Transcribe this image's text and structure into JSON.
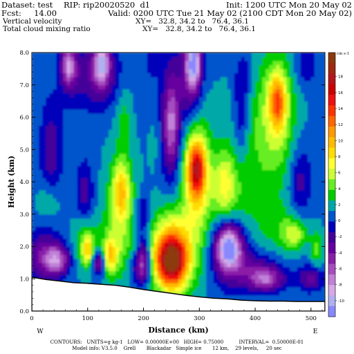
{
  "header": {
    "dataset": "Dataset: test",
    "rip": "RIP: rip20020520  d1",
    "init": "Init: 1200 UTC Mon 20 May 02",
    "fcst": "Fcst:     14.00",
    "valid": "Valid: 0200 UTC Tue 21 May 02 (2100 CDT Mon 20 May 02)",
    "field1": "Vertical velocity",
    "xy1": "XY=   32.8, 34.2 to   76.4, 36.1",
    "field2": "Total cloud mixing ratio",
    "xy2": "XY=   32.8, 34.2 to   76.4, 36.1"
  },
  "footer": {
    "contours": "CONTOURS:   UNITS=g kg-1   LOW= 0.00000E+00   HIGH= 0.75000          INTERVAL=  0.50000E-01",
    "model": "Model info: V3.5.0    Grell       Blackadar   Simple ice       12 km,    29 levels,     20 sec"
  },
  "chart_data": {
    "type": "heatmap",
    "title": "",
    "xlabel": "Distance (km)",
    "ylabel": "Height (km)",
    "xlim": [
      0,
      525
    ],
    "ylim": [
      0,
      8
    ],
    "x_ticks": [
      "0",
      "100",
      "200",
      "300",
      "400",
      "500"
    ],
    "y_ticks": [
      "0.0",
      "1.0",
      "2.0",
      "3.0",
      "4.0",
      "5.0",
      "6.0",
      "7.0",
      "8.0"
    ],
    "end_labels": {
      "left": "W",
      "right": "E"
    },
    "colorbar": {
      "unit_label": "cm s-1",
      "labels": [
        "18",
        "16",
        "14",
        "12",
        "10",
        "8",
        "6",
        "4",
        "2",
        "0",
        "-2",
        "-4",
        "-6",
        "-8",
        "-10"
      ],
      "colors": [
        "#8b3a0a",
        "#a0280f",
        "#b5141a",
        "#cc0000",
        "#ee1010",
        "#ff3300",
        "#ff6600",
        "#ff9900",
        "#ffbb00",
        "#ffdd00",
        "#ffff33",
        "#ccff33",
        "#66ee22",
        "#00cc00",
        "#00a8a8",
        "#0055cc",
        "#0000bb",
        "#44009a",
        "#66009e",
        "#8a1fa8",
        "#a64dc0",
        "#c080d8",
        "#d6a8e6",
        "#b0b0f0",
        "#8888ff"
      ]
    },
    "terrain_km": [
      [
        0,
        1.05
      ],
      [
        25,
        0.98
      ],
      [
        50,
        0.93
      ],
      [
        75,
        0.88
      ],
      [
        100,
        0.86
      ],
      [
        125,
        0.83
      ],
      [
        150,
        0.8
      ],
      [
        175,
        0.74
      ],
      [
        200,
        0.67
      ],
      [
        225,
        0.61
      ],
      [
        250,
        0.55
      ],
      [
        275,
        0.49
      ],
      [
        300,
        0.44
      ],
      [
        325,
        0.4
      ],
      [
        350,
        0.38
      ],
      [
        375,
        0.34
      ],
      [
        400,
        0.32
      ],
      [
        425,
        0.31
      ],
      [
        450,
        0.31
      ],
      [
        475,
        0.3
      ],
      [
        500,
        0.3
      ],
      [
        525,
        0.3
      ]
    ],
    "features": [
      {
        "x": 250,
        "y": 1.55,
        "rx": 26,
        "ry": 0.75,
        "v": 14
      },
      {
        "x": 250,
        "y": 1.9,
        "rx": 38,
        "ry": 1.3,
        "v": 8
      },
      {
        "x": 140,
        "y": 1.7,
        "rx": 12,
        "ry": 0.5,
        "v": 6
      },
      {
        "x": 150,
        "y": 2.0,
        "rx": 30,
        "ry": 1.1,
        "v": 3
      },
      {
        "x": 100,
        "y": 1.9,
        "rx": 10,
        "ry": 0.45,
        "v": 6
      },
      {
        "x": 95,
        "y": 2.2,
        "rx": 22,
        "ry": 0.9,
        "v": 3
      },
      {
        "x": 295,
        "y": 4.4,
        "rx": 15,
        "ry": 0.75,
        "v": 10
      },
      {
        "x": 295,
        "y": 4.3,
        "rx": 24,
        "ry": 1.6,
        "v": 5
      },
      {
        "x": 295,
        "y": 3.7,
        "rx": 30,
        "ry": 2.8,
        "v": 2
      },
      {
        "x": 160,
        "y": 3.7,
        "rx": 14,
        "ry": 0.8,
        "v": 6
      },
      {
        "x": 160,
        "y": 3.6,
        "rx": 30,
        "ry": 1.7,
        "v": 3
      },
      {
        "x": 165,
        "y": 6.0,
        "rx": 14,
        "ry": 1.0,
        "v": 2
      },
      {
        "x": 345,
        "y": 4.0,
        "rx": 18,
        "ry": 1.0,
        "v": 4
      },
      {
        "x": 355,
        "y": 3.5,
        "rx": 50,
        "ry": 1.2,
        "v": 2
      },
      {
        "x": 440,
        "y": 6.5,
        "rx": 14,
        "ry": 0.8,
        "v": 8
      },
      {
        "x": 440,
        "y": 6.2,
        "rx": 34,
        "ry": 1.9,
        "v": 4
      },
      {
        "x": 400,
        "y": 5.2,
        "rx": 60,
        "ry": 2.5,
        "v": 2
      },
      {
        "x": 470,
        "y": 2.4,
        "rx": 20,
        "ry": 0.45,
        "v": 4
      },
      {
        "x": 450,
        "y": 2.5,
        "rx": 45,
        "ry": 0.9,
        "v": 2
      },
      {
        "x": 30,
        "y": 3.4,
        "rx": 22,
        "ry": 0.6,
        "v": 2
      },
      {
        "x": 220,
        "y": 5.2,
        "rx": 12,
        "ry": 1.0,
        "v": 1
      },
      {
        "x": 510,
        "y": 1.9,
        "rx": 12,
        "ry": 0.6,
        "v": 3
      },
      {
        "x": 45,
        "y": 1.6,
        "rx": 22,
        "ry": 0.45,
        "v": -7
      },
      {
        "x": 20,
        "y": 1.7,
        "rx": 30,
        "ry": 0.8,
        "v": -4
      },
      {
        "x": 120,
        "y": 1.5,
        "rx": 12,
        "ry": 0.4,
        "v": -6
      },
      {
        "x": 200,
        "y": 1.7,
        "rx": 12,
        "ry": 0.6,
        "v": -5
      },
      {
        "x": 195,
        "y": 1.3,
        "rx": 18,
        "ry": 0.5,
        "v": -4
      },
      {
        "x": 352,
        "y": 2.0,
        "rx": 20,
        "ry": 0.6,
        "v": -9
      },
      {
        "x": 355,
        "y": 1.9,
        "rx": 32,
        "ry": 1.0,
        "v": -5
      },
      {
        "x": 420,
        "y": 1.0,
        "rx": 30,
        "ry": 0.35,
        "v": -6
      },
      {
        "x": 400,
        "y": 1.3,
        "rx": 50,
        "ry": 0.6,
        "v": -3
      },
      {
        "x": 500,
        "y": 1.05,
        "rx": 22,
        "ry": 0.4,
        "v": -4
      },
      {
        "x": 290,
        "y": 7.7,
        "rx": 12,
        "ry": 0.7,
        "v": -9
      },
      {
        "x": 285,
        "y": 7.2,
        "rx": 20,
        "ry": 1.3,
        "v": -5
      },
      {
        "x": 250,
        "y": 5.8,
        "rx": 12,
        "ry": 1.2,
        "v": -5
      },
      {
        "x": 250,
        "y": 6.0,
        "rx": 22,
        "ry": 2.4,
        "v": -3
      },
      {
        "x": 125,
        "y": 7.7,
        "rx": 14,
        "ry": 0.6,
        "v": -8
      },
      {
        "x": 120,
        "y": 7.3,
        "rx": 35,
        "ry": 1.0,
        "v": -4
      },
      {
        "x": 65,
        "y": 7.6,
        "rx": 12,
        "ry": 0.5,
        "v": -6
      },
      {
        "x": 70,
        "y": 7.4,
        "rx": 20,
        "ry": 0.9,
        "v": -3
      },
      {
        "x": 35,
        "y": 5.0,
        "rx": 20,
        "ry": 1.5,
        "v": -3
      },
      {
        "x": 95,
        "y": 3.6,
        "rx": 16,
        "ry": 1.0,
        "v": -3
      },
      {
        "x": 200,
        "y": 3.0,
        "rx": 12,
        "ry": 0.7,
        "v": -3
      },
      {
        "x": 375,
        "y": 6.0,
        "rx": 14,
        "ry": 1.2,
        "v": -3
      },
      {
        "x": 480,
        "y": 4.0,
        "rx": 20,
        "ry": 1.2,
        "v": -3
      },
      {
        "x": 380,
        "y": 7.3,
        "rx": 18,
        "ry": 0.8,
        "v": -2
      },
      {
        "x": 490,
        "y": 7.6,
        "rx": 22,
        "ry": 0.7,
        "v": -2
      },
      {
        "x": 215,
        "y": 7.8,
        "rx": 10,
        "ry": 0.5,
        "v": -2
      }
    ]
  }
}
